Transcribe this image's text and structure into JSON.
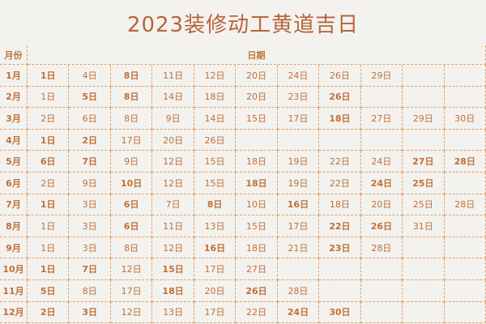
{
  "title": "2023装修动工黄道吉日",
  "table": {
    "header": {
      "month": "月份",
      "days": "日期"
    },
    "rows": [
      {
        "month": "1月",
        "days": [
          {
            "text": "1日",
            "bold": true
          },
          {
            "text": "4日",
            "bold": false
          },
          {
            "text": "8日",
            "bold": true
          },
          {
            "text": "11日",
            "bold": false
          },
          {
            "text": "12日",
            "bold": false
          },
          {
            "text": "20日",
            "bold": false
          },
          {
            "text": "24日",
            "bold": false
          },
          {
            "text": "26日",
            "bold": false
          },
          {
            "text": "29日",
            "bold": false
          }
        ]
      },
      {
        "month": "2月",
        "days": [
          {
            "text": "1日",
            "bold": false
          },
          {
            "text": "5日",
            "bold": true
          },
          {
            "text": "8日",
            "bold": true
          },
          {
            "text": "14日",
            "bold": false
          },
          {
            "text": "18日",
            "bold": false
          },
          {
            "text": "20日",
            "bold": false
          },
          {
            "text": "23日",
            "bold": false
          },
          {
            "text": "26日",
            "bold": true
          }
        ]
      },
      {
        "month": "3月",
        "days": [
          {
            "text": "2日",
            "bold": false
          },
          {
            "text": "6日",
            "bold": false
          },
          {
            "text": "8日",
            "bold": false
          },
          {
            "text": "9日",
            "bold": false
          },
          {
            "text": "14日",
            "bold": false
          },
          {
            "text": "15日",
            "bold": false
          },
          {
            "text": "17日",
            "bold": false
          },
          {
            "text": "18日",
            "bold": true
          },
          {
            "text": "27日",
            "bold": false
          },
          {
            "text": "29日",
            "bold": false
          },
          {
            "text": "30日",
            "bold": false
          }
        ]
      },
      {
        "month": "4月",
        "days": [
          {
            "text": "1日",
            "bold": true
          },
          {
            "text": "2日",
            "bold": true
          },
          {
            "text": "17日",
            "bold": false
          },
          {
            "text": "20日",
            "bold": false
          },
          {
            "text": "26日",
            "bold": false
          }
        ]
      },
      {
        "month": "5月",
        "days": [
          {
            "text": "6日",
            "bold": true
          },
          {
            "text": "7日",
            "bold": true
          },
          {
            "text": "9日",
            "bold": false
          },
          {
            "text": "12日",
            "bold": false
          },
          {
            "text": "15日",
            "bold": false
          },
          {
            "text": "18日",
            "bold": false
          },
          {
            "text": "19日",
            "bold": false
          },
          {
            "text": "22日",
            "bold": false
          },
          {
            "text": "24日",
            "bold": false
          },
          {
            "text": "27日",
            "bold": true
          },
          {
            "text": "28日",
            "bold": true
          }
        ]
      },
      {
        "month": "6月",
        "days": [
          {
            "text": "2日",
            "bold": false
          },
          {
            "text": "9日",
            "bold": false
          },
          {
            "text": "10日",
            "bold": true
          },
          {
            "text": "12日",
            "bold": false
          },
          {
            "text": "15日",
            "bold": false
          },
          {
            "text": "18日",
            "bold": true
          },
          {
            "text": "19日",
            "bold": false
          },
          {
            "text": "22日",
            "bold": false
          },
          {
            "text": "24日",
            "bold": true
          },
          {
            "text": "25日",
            "bold": true
          }
        ]
      },
      {
        "month": "7月",
        "days": [
          {
            "text": "1日",
            "bold": true
          },
          {
            "text": "3日",
            "bold": false
          },
          {
            "text": "6日",
            "bold": true
          },
          {
            "text": "7日",
            "bold": false
          },
          {
            "text": "8日",
            "bold": true
          },
          {
            "text": "10日",
            "bold": false
          },
          {
            "text": "16日",
            "bold": true
          },
          {
            "text": "18日",
            "bold": false
          },
          {
            "text": "20日",
            "bold": false
          },
          {
            "text": "25日",
            "bold": false
          },
          {
            "text": "28日",
            "bold": false
          }
        ]
      },
      {
        "month": "8月",
        "days": [
          {
            "text": "1日",
            "bold": false
          },
          {
            "text": "3日",
            "bold": false
          },
          {
            "text": "6日",
            "bold": true
          },
          {
            "text": "11日",
            "bold": false
          },
          {
            "text": "13日",
            "bold": false
          },
          {
            "text": "15日",
            "bold": false
          },
          {
            "text": "17日",
            "bold": false
          },
          {
            "text": "22日",
            "bold": true
          },
          {
            "text": "26日",
            "bold": true
          },
          {
            "text": "31日",
            "bold": false
          }
        ]
      },
      {
        "month": "9月",
        "days": [
          {
            "text": "1日",
            "bold": false
          },
          {
            "text": "3日",
            "bold": false
          },
          {
            "text": "8日",
            "bold": false
          },
          {
            "text": "12日",
            "bold": false
          },
          {
            "text": "16日",
            "bold": true
          },
          {
            "text": "18日",
            "bold": false
          },
          {
            "text": "21日",
            "bold": false
          },
          {
            "text": "23日",
            "bold": true
          },
          {
            "text": "28日",
            "bold": false
          }
        ]
      },
      {
        "month": "10月",
        "days": [
          {
            "text": "1日",
            "bold": true
          },
          {
            "text": "7日",
            "bold": true
          },
          {
            "text": "12日",
            "bold": false
          },
          {
            "text": "15日",
            "bold": true
          },
          {
            "text": "17日",
            "bold": false
          },
          {
            "text": "27日",
            "bold": false
          }
        ]
      },
      {
        "month": "11月",
        "days": [
          {
            "text": "5日",
            "bold": true
          },
          {
            "text": "8日",
            "bold": false
          },
          {
            "text": "17日",
            "bold": false
          },
          {
            "text": "18日",
            "bold": true
          },
          {
            "text": "20日",
            "bold": false
          },
          {
            "text": "26日",
            "bold": true
          },
          {
            "text": "28日",
            "bold": false
          }
        ]
      },
      {
        "month": "12月",
        "days": [
          {
            "text": "2日",
            "bold": true
          },
          {
            "text": "3日",
            "bold": true
          },
          {
            "text": "12日",
            "bold": false
          },
          {
            "text": "13日",
            "bold": false
          },
          {
            "text": "17日",
            "bold": false
          },
          {
            "text": "22日",
            "bold": false
          },
          {
            "text": "24日",
            "bold": true
          },
          {
            "text": "30日",
            "bold": true
          }
        ]
      }
    ]
  }
}
